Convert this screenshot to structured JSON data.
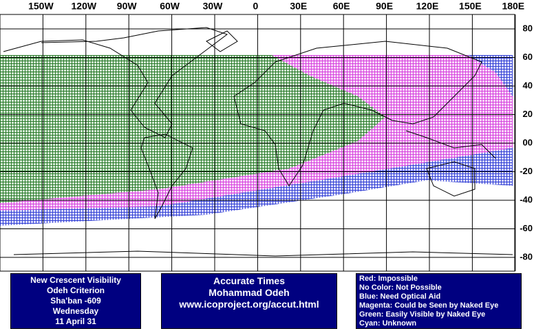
{
  "map": {
    "x_labels": [
      "150W",
      "120W",
      "90W",
      "60W",
      "30W",
      "0",
      "30E",
      "60E",
      "90E",
      "120E",
      "150E",
      "180E"
    ],
    "y_labels": [
      "80",
      "60",
      "40",
      "20",
      "00",
      "-20",
      "-40",
      "-60",
      "-80"
    ]
  },
  "boxes": {
    "info": [
      "New Crescent Visibility",
      "Odeh Criterion",
      "Sha'ban -609",
      "Wednesday",
      "11 April 31"
    ],
    "credit": [
      "Accurate Times",
      "Mohammad Odeh",
      "www.icoproject.org/accut.html"
    ],
    "legend": [
      "Red: Impossible",
      "No Color: Not Possible",
      "Blue: Need Optical Aid",
      "Magenta: Could be Seen by Naked Eye",
      "Green: Easily Visible by Naked Eye",
      "Cyan: Unknown"
    ]
  }
}
